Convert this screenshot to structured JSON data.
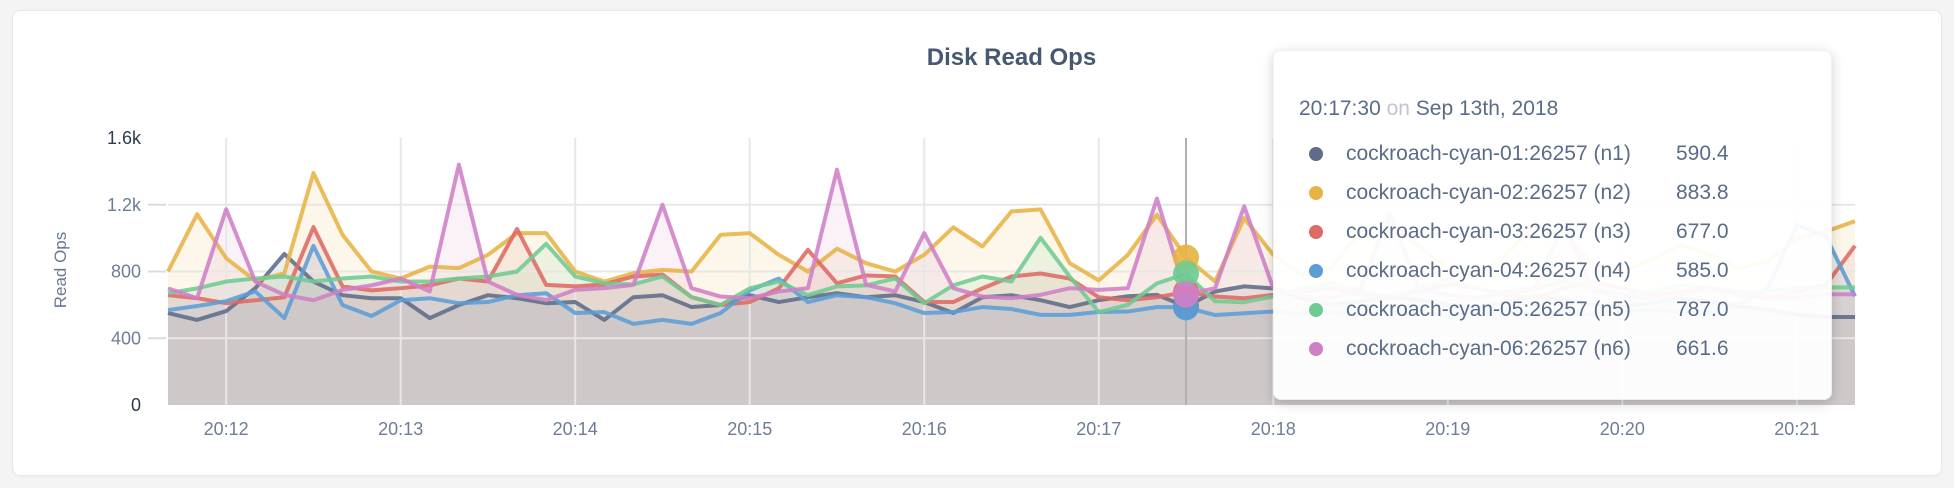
{
  "panel": {
    "title": "Disk Read Ops"
  },
  "y_axis": {
    "label": "Read Ops",
    "ticks": [
      {
        "label": "0",
        "value": 0
      },
      {
        "label": "400",
        "value": 400
      },
      {
        "label": "800",
        "value": 800
      },
      {
        "label": "1.2k",
        "value": 1200
      },
      {
        "label": "1.6k",
        "value": 1600
      }
    ]
  },
  "x_axis": {
    "tick_labels": [
      "20:12",
      "20:13",
      "20:14",
      "20:15",
      "20:16",
      "20:17",
      "20:18",
      "20:19",
      "20:20",
      "20:21"
    ]
  },
  "chart_data": {
    "type": "line",
    "title": "Disk Read Ops",
    "ylabel": "Read Ops",
    "ylim": [
      0,
      1600
    ],
    "grid": true,
    "x_start": "20:11:40",
    "x_interval_seconds": 10,
    "x_tick_first_index": 2,
    "x_tick_step": 6,
    "highlight_index": 35,
    "series": [
      {
        "name": "cockroach-cyan-01:26257 (n1)",
        "node": "n1",
        "color": "#5f6c87",
        "values": [
          551,
          510,
          563,
          700,
          905,
          740,
          658,
          640,
          640,
          521,
          599,
          658,
          640,
          610,
          617,
          510,
          646,
          658,
          587,
          599,
          658,
          617,
          646,
          670,
          646,
          658,
          617,
          551,
          646,
          658,
          628,
          587,
          628,
          652,
          660,
          590.4,
          680,
          711,
          699,
          640,
          600,
          620,
          650,
          630,
          600,
          580,
          620,
          650,
          630,
          600,
          590,
          610,
          640,
          620,
          590,
          570,
          540,
          527,
          527
        ]
      },
      {
        "name": "cockroach-cyan-02:26257 (n2)",
        "node": "n2",
        "color": "#e7b344",
        "values": [
          800,
          1143,
          880,
          745,
          790,
          1390,
          1020,
          800,
          758,
          829,
          820,
          900,
          1030,
          1030,
          800,
          740,
          790,
          810,
          800,
          1020,
          1030,
          900,
          800,
          937,
          850,
          800,
          900,
          1065,
          950,
          1160,
          1172,
          850,
          747,
          900,
          1140,
          883.8,
          740,
          1120,
          900,
          780,
          820,
          1050,
          1100,
          950,
          820,
          780,
          900,
          1080,
          1020,
          840,
          800,
          870,
          960,
          900,
          820,
          860,
          1000,
          1040,
          1102
        ]
      },
      {
        "name": "cockroach-cyan-03:26257 (n3)",
        "node": "n3",
        "color": "#dd6a63",
        "values": [
          658,
          640,
          610,
          628,
          646,
          1066,
          711,
          687,
          700,
          717,
          758,
          740,
          1055,
          720,
          711,
          723,
          770,
          782,
          646,
          599,
          617,
          699,
          930,
          729,
          777,
          770,
          617,
          617,
          699,
          770,
          788,
          758,
          646,
          628,
          646,
          677,
          650,
          640,
          660,
          680,
          700,
          660,
          640,
          680,
          720,
          700,
          660,
          640,
          700,
          740,
          700,
          660,
          680,
          700,
          660,
          640,
          680,
          720,
          954
        ]
      },
      {
        "name": "cockroach-cyan-04:26257 (n4)",
        "node": "n4",
        "color": "#5c9dd6",
        "values": [
          569,
          593,
          622,
          681,
          521,
          954,
          599,
          533,
          628,
          640,
          610,
          617,
          658,
          670,
          551,
          557,
          486,
          510,
          486,
          551,
          687,
          758,
          617,
          658,
          646,
          610,
          551,
          557,
          587,
          575,
          540,
          540,
          557,
          560,
          587,
          585,
          539,
          550,
          560,
          545,
          555,
          540,
          560,
          550,
          540,
          555,
          560,
          545,
          555,
          540,
          560,
          570,
          555,
          545,
          600,
          700,
          1080,
          1010,
          652
        ]
      },
      {
        "name": "cockroach-cyan-05:26257 (n5)",
        "node": "n5",
        "color": "#6ecb92",
        "values": [
          670,
          699,
          740,
          758,
          770,
          740,
          758,
          770,
          740,
          740,
          758,
          770,
          800,
          966,
          770,
          729,
          723,
          770,
          646,
          599,
          699,
          740,
          658,
          711,
          717,
          758,
          610,
          717,
          770,
          740,
          1002,
          770,
          557,
          600,
          729,
          787,
          622,
          616,
          650,
          700,
          730,
          680,
          650,
          700,
          750,
          700,
          660,
          700,
          740,
          700,
          660,
          680,
          720,
          700,
          660,
          680,
          700,
          705,
          705
        ]
      },
      {
        "name": "cockroach-cyan-06:26257 (n6)",
        "node": "n6",
        "color": "#cf7fc6",
        "values": [
          699,
          640,
          1173,
          740,
          660,
          628,
          690,
          717,
          758,
          681,
          1440,
          740,
          660,
          628,
          690,
          700,
          720,
          1200,
          700,
          650,
          640,
          680,
          700,
          1410,
          720,
          680,
          1030,
          700,
          650,
          640,
          660,
          700,
          690,
          700,
          1237,
          661.6,
          700,
          1191,
          700,
          650,
          640,
          700,
          1150,
          700,
          660,
          640,
          680,
          700,
          1100,
          680,
          650,
          640,
          660,
          700,
          680,
          650,
          640,
          664,
          664
        ]
      }
    ]
  },
  "tooltip": {
    "time": "20:17:30",
    "conjunction": "on",
    "date": "Sep 13th, 2018",
    "rows": [
      {
        "label": "cockroach-cyan-01:26257 (n1)",
        "value": "590.4",
        "color": "#5f6c87"
      },
      {
        "label": "cockroach-cyan-02:26257 (n2)",
        "value": "883.8",
        "color": "#e7b344"
      },
      {
        "label": "cockroach-cyan-03:26257 (n3)",
        "value": "677.0",
        "color": "#dd6a63"
      },
      {
        "label": "cockroach-cyan-04:26257 (n4)",
        "value": "585.0",
        "color": "#5c9dd6"
      },
      {
        "label": "cockroach-cyan-05:26257 (n5)",
        "value": "787.0",
        "color": "#6ecb92"
      },
      {
        "label": "cockroach-cyan-06:26257 (n6)",
        "value": "661.6",
        "color": "#cf7fc6"
      }
    ]
  },
  "colors": {
    "page_background": "#f4f4f5",
    "panel_background": "#ffffff",
    "title_text": "#475872",
    "axis_text": "#6e7e96",
    "axis_text_emphasis": "#2e3a4d",
    "gridline": "#e7e7e5",
    "crosshair": "#b0b0b0"
  }
}
